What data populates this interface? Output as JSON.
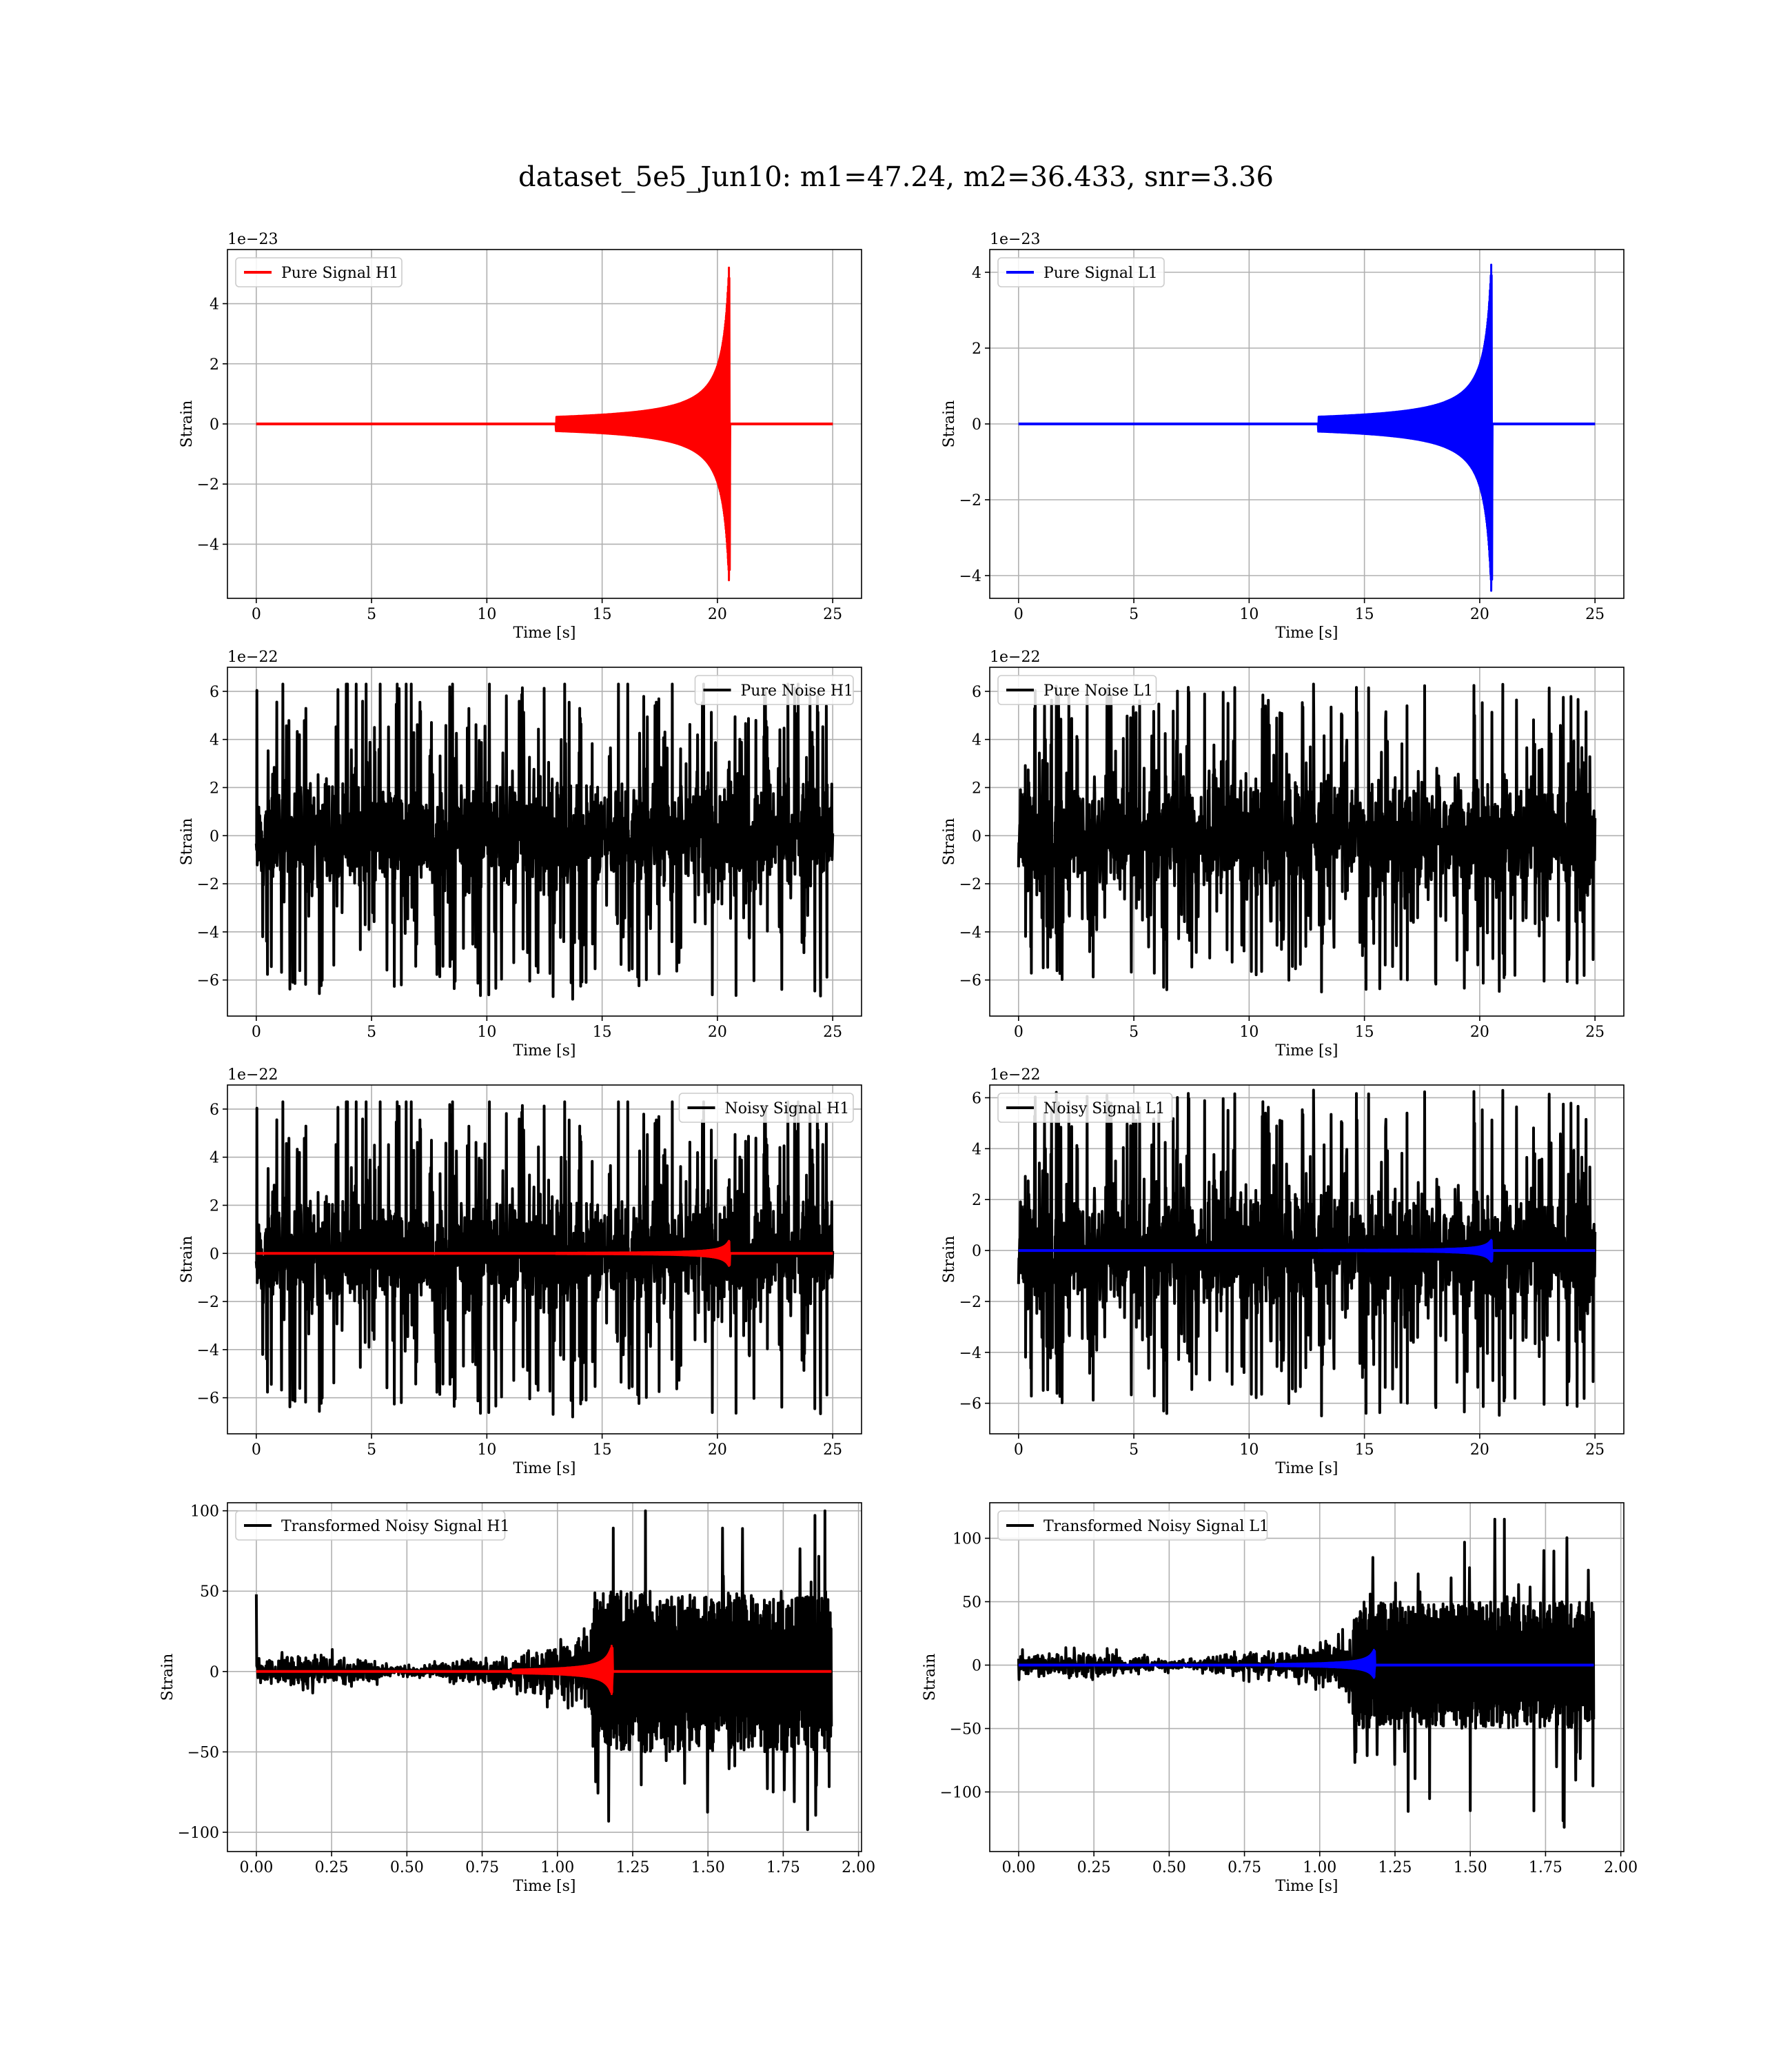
{
  "figure": {
    "title": "dataset_5e5_Jun10: m1=47.24, m2=36.433, snr=3.36"
  },
  "colors": {
    "h1_signal": "#ff0000",
    "l1_signal": "#0000ff",
    "noise": "#000000",
    "grid": "#b0b0b0"
  },
  "chart_data": [
    {
      "id": "pure-signal-h1",
      "type": "line",
      "xlabel": "Time [s]",
      "ylabel": "Strain",
      "offset_text": "1e−23",
      "xlim": [
        -1.25,
        26.25
      ],
      "ylim": [
        -5.8,
        5.8
      ],
      "xticks": [
        0,
        5,
        10,
        15,
        20,
        25
      ],
      "xtick_labels": [
        "0",
        "5",
        "10",
        "15",
        "20",
        "25"
      ],
      "yticks": [
        -4,
        -2,
        0,
        2,
        4
      ],
      "ytick_labels": [
        "−4",
        "−2",
        "0",
        "2",
        "4"
      ],
      "legend": {
        "position": "upper-left",
        "label": "Pure Signal H1",
        "color": "#ff0000"
      },
      "grid": true,
      "series": [
        {
          "name": "Pure Signal H1",
          "kind": "chirp",
          "color": "#ff0000",
          "duration": 25,
          "merger_time": 20.5,
          "peak": 5.2,
          "peak_neg": -5.2,
          "onset": 13
        }
      ]
    },
    {
      "id": "pure-signal-l1",
      "type": "line",
      "xlabel": "Time [s]",
      "ylabel": "Strain",
      "offset_text": "1e−23",
      "xlim": [
        -1.25,
        26.25
      ],
      "ylim": [
        -4.6,
        4.6
      ],
      "xticks": [
        0,
        5,
        10,
        15,
        20,
        25
      ],
      "xtick_labels": [
        "0",
        "5",
        "10",
        "15",
        "20",
        "25"
      ],
      "yticks": [
        -4,
        -2,
        0,
        2,
        4
      ],
      "ytick_labels": [
        "−4",
        "−2",
        "0",
        "2",
        "4"
      ],
      "legend": {
        "position": "upper-left",
        "label": "Pure Signal L1",
        "color": "#0000ff"
      },
      "grid": true,
      "series": [
        {
          "name": "Pure Signal L1",
          "kind": "chirp",
          "color": "#0000ff",
          "duration": 25,
          "merger_time": 20.5,
          "peak": 4.2,
          "peak_neg": -4.4,
          "onset": 13
        }
      ]
    },
    {
      "id": "pure-noise-h1",
      "type": "line",
      "xlabel": "Time [s]",
      "ylabel": "Strain",
      "offset_text": "1e−22",
      "xlim": [
        -1.25,
        26.25
      ],
      "ylim": [
        -7.5,
        7.0
      ],
      "xticks": [
        0,
        5,
        10,
        15,
        20,
        25
      ],
      "xtick_labels": [
        "0",
        "5",
        "10",
        "15",
        "20",
        "25"
      ],
      "yticks": [
        -6,
        -4,
        -2,
        0,
        2,
        4,
        6
      ],
      "ytick_labels": [
        "−6",
        "−4",
        "−2",
        "0",
        "2",
        "4",
        "6"
      ],
      "legend": {
        "position": "upper-right",
        "label": "Pure Noise H1",
        "color": "#000000"
      },
      "grid": true,
      "series": [
        {
          "name": "Pure Noise H1",
          "kind": "noise",
          "color": "#000000",
          "duration": 25,
          "band": 3.6,
          "max": 6.3,
          "min": -6.8,
          "seed": 11
        }
      ]
    },
    {
      "id": "pure-noise-l1",
      "type": "line",
      "xlabel": "Time [s]",
      "ylabel": "Strain",
      "offset_text": "1e−22",
      "xlim": [
        -1.25,
        26.25
      ],
      "ylim": [
        -7.5,
        7.0
      ],
      "xticks": [
        0,
        5,
        10,
        15,
        20,
        25
      ],
      "xtick_labels": [
        "0",
        "5",
        "10",
        "15",
        "20",
        "25"
      ],
      "yticks": [
        -6,
        -4,
        -2,
        0,
        2,
        4,
        6
      ],
      "ytick_labels": [
        "−6",
        "−4",
        "−2",
        "0",
        "2",
        "4",
        "6"
      ],
      "legend": {
        "position": "upper-left",
        "label": "Pure Noise L1",
        "color": "#000000"
      },
      "grid": true,
      "series": [
        {
          "name": "Pure Noise L1",
          "kind": "noise",
          "color": "#000000",
          "duration": 25,
          "band": 3.6,
          "max": 6.3,
          "min": -6.5,
          "seed": 23
        }
      ]
    },
    {
      "id": "noisy-signal-h1",
      "type": "line",
      "xlabel": "Time [s]",
      "ylabel": "Strain",
      "offset_text": "1e−22",
      "xlim": [
        -1.25,
        26.25
      ],
      "ylim": [
        -7.5,
        7.0
      ],
      "xticks": [
        0,
        5,
        10,
        15,
        20,
        25
      ],
      "xtick_labels": [
        "0",
        "5",
        "10",
        "15",
        "20",
        "25"
      ],
      "yticks": [
        -6,
        -4,
        -2,
        0,
        2,
        4,
        6
      ],
      "ytick_labels": [
        "−6",
        "−4",
        "−2",
        "0",
        "2",
        "4",
        "6"
      ],
      "legend": {
        "position": "upper-right",
        "label": "Noisy Signal H1",
        "color": "#000000"
      },
      "grid": true,
      "series": [
        {
          "name": "Noisy Signal H1",
          "kind": "noise",
          "color": "#000000",
          "duration": 25,
          "band": 3.6,
          "max": 6.3,
          "min": -6.8,
          "seed": 11
        },
        {
          "name": "",
          "kind": "chirp",
          "color": "#ff0000",
          "duration": 25,
          "merger_time": 20.5,
          "peak": 0.52,
          "peak_neg": -0.52,
          "onset": 13
        }
      ]
    },
    {
      "id": "noisy-signal-l1",
      "type": "line",
      "xlabel": "Time [s]",
      "ylabel": "Strain",
      "offset_text": "1e−22",
      "xlim": [
        -1.25,
        26.25
      ],
      "ylim": [
        -7.2,
        6.5
      ],
      "xticks": [
        0,
        5,
        10,
        15,
        20,
        25
      ],
      "xtick_labels": [
        "0",
        "5",
        "10",
        "15",
        "20",
        "25"
      ],
      "yticks": [
        -6,
        -4,
        -2,
        0,
        2,
        4,
        6
      ],
      "ytick_labels": [
        "−6",
        "−4",
        "−2",
        "0",
        "2",
        "4",
        "6"
      ],
      "legend": {
        "position": "upper-left",
        "label": "Noisy Signal L1",
        "color": "#000000"
      },
      "grid": true,
      "series": [
        {
          "name": "Noisy Signal L1",
          "kind": "noise",
          "color": "#000000",
          "duration": 25,
          "band": 3.6,
          "max": 6.3,
          "min": -6.5,
          "seed": 23
        },
        {
          "name": "",
          "kind": "chirp",
          "color": "#0000ff",
          "duration": 25,
          "merger_time": 20.5,
          "peak": 0.42,
          "peak_neg": -0.44,
          "onset": 13
        }
      ]
    },
    {
      "id": "transformed-noisy-signal-h1",
      "type": "line",
      "xlabel": "Time [s]",
      "ylabel": "Strain",
      "offset_text": "",
      "xlim": [
        -0.096,
        2.01
      ],
      "ylim": [
        -112,
        105
      ],
      "xticks": [
        0,
        0.25,
        0.5,
        0.75,
        1.0,
        1.25,
        1.5,
        1.75,
        2.0
      ],
      "xtick_labels": [
        "0.00",
        "0.25",
        "0.50",
        "0.75",
        "1.00",
        "1.25",
        "1.50",
        "1.75",
        "2.00"
      ],
      "yticks": [
        -100,
        -50,
        0,
        50,
        100
      ],
      "ytick_labels": [
        "−100",
        "−50",
        "0",
        "50",
        "100"
      ],
      "legend": {
        "position": "upper-left",
        "label": "Transformed Noisy Signal H1",
        "color": "#000000"
      },
      "grid": true,
      "series": [
        {
          "name": "Transformed Noisy Signal H1",
          "kind": "whitened",
          "color": "#000000",
          "duration": 1.91,
          "step_time": 1.11,
          "low_band": 8,
          "high_band": 50,
          "max": 100,
          "min": -108,
          "spike_start": 48,
          "seed": 31
        },
        {
          "name": "",
          "kind": "chirp",
          "color": "#ff0000",
          "duration": 1.91,
          "merger_time": 1.18,
          "peak": 16,
          "peak_neg": -14,
          "onset": 0.85
        }
      ]
    },
    {
      "id": "transformed-noisy-signal-l1",
      "type": "line",
      "xlabel": "Time [s]",
      "ylabel": "Strain",
      "offset_text": "",
      "xlim": [
        -0.096,
        2.01
      ],
      "ylim": [
        -147,
        128
      ],
      "xticks": [
        0,
        0.25,
        0.5,
        0.75,
        1.0,
        1.25,
        1.5,
        1.75,
        2.0
      ],
      "xtick_labels": [
        "0.00",
        "0.25",
        "0.50",
        "0.75",
        "1.00",
        "1.25",
        "1.50",
        "1.75",
        "2.00"
      ],
      "yticks": [
        -100,
        -50,
        0,
        50,
        100
      ],
      "ytick_labels": [
        "−100",
        "−50",
        "0",
        "50",
        "100"
      ],
      "legend": {
        "position": "upper-left",
        "label": "Transformed Noisy Signal L1",
        "color": "#000000"
      },
      "grid": true,
      "series": [
        {
          "name": "Transformed Noisy Signal L1",
          "kind": "whitened",
          "color": "#000000",
          "duration": 1.91,
          "step_time": 1.11,
          "low_band": 8,
          "high_band": 50,
          "max": 115,
          "min": -135,
          "spike_start": 5,
          "seed": 47
        },
        {
          "name": "",
          "kind": "chirp",
          "color": "#0000ff",
          "duration": 1.91,
          "merger_time": 1.18,
          "peak": 12,
          "peak_neg": -10,
          "onset": 0.85
        }
      ]
    }
  ]
}
